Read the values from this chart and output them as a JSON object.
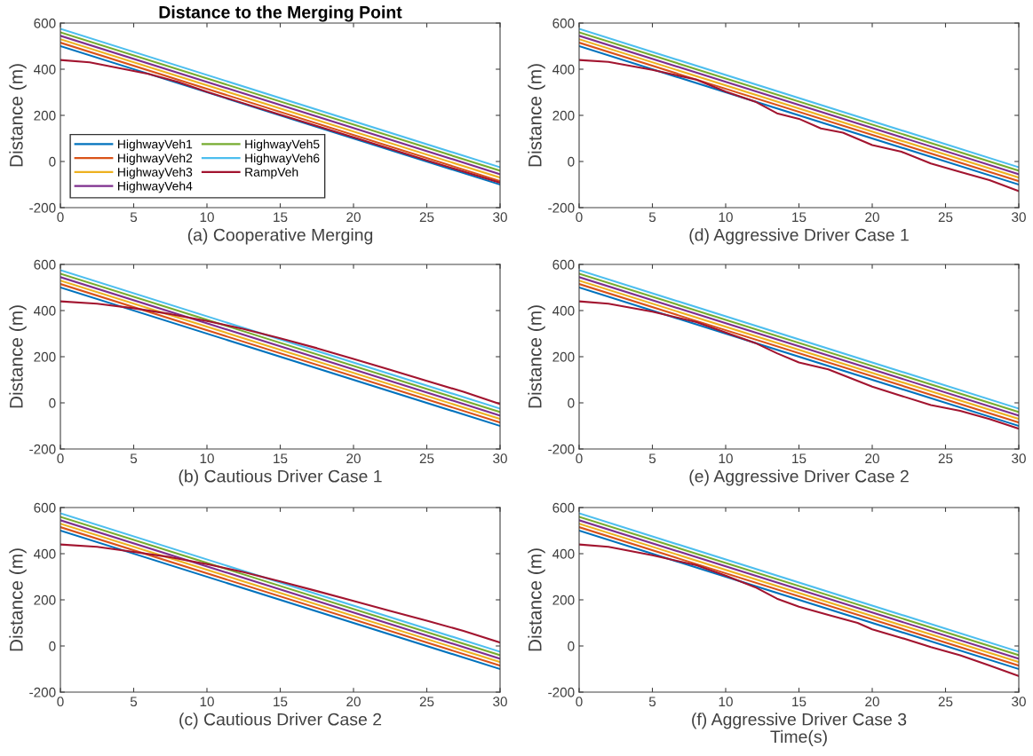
{
  "chart_data": [
    {
      "type": "line",
      "title": "Distance to the Merging Point",
      "xlabel": "(a) Cooperative Merging",
      "ylabel": "Distance (m)",
      "xlim": [
        0,
        30
      ],
      "ylim": [
        -200,
        600
      ],
      "xticks": [
        0,
        5,
        10,
        15,
        20,
        25,
        30
      ],
      "yticks": [
        -200,
        0,
        200,
        400,
        600
      ],
      "legend": "bottom left",
      "grid": false,
      "series": [
        {
          "name": "HighwayVeh1",
          "color": "#0072bd",
          "x": [
            0,
            30
          ],
          "values": [
            500,
            -100
          ]
        },
        {
          "name": "HighwayVeh2",
          "color": "#d95319",
          "x": [
            0,
            30
          ],
          "values": [
            515,
            -85
          ]
        },
        {
          "name": "HighwayVeh3",
          "color": "#edb120",
          "x": [
            0,
            30
          ],
          "values": [
            530,
            -70
          ]
        },
        {
          "name": "HighwayVeh4",
          "color": "#7e2f8e",
          "x": [
            0,
            30
          ],
          "values": [
            545,
            -55
          ]
        },
        {
          "name": "HighwayVeh5",
          "color": "#77ac30",
          "x": [
            0,
            30
          ],
          "values": [
            560,
            -40
          ]
        },
        {
          "name": "HighwayVeh6",
          "color": "#4dbeee",
          "x": [
            0,
            30
          ],
          "values": [
            575,
            -25
          ]
        },
        {
          "name": "RampVeh",
          "color": "#a2142f",
          "x": [
            0,
            2,
            4,
            6,
            8,
            10,
            12,
            15,
            20,
            25,
            30
          ],
          "values": [
            440,
            430,
            405,
            380,
            345,
            302,
            262,
            203,
            105,
            5,
            -92
          ]
        }
      ]
    },
    {
      "type": "line",
      "xlabel": "(d) Aggressive Driver Case 1",
      "ylabel": "Distance (m)",
      "xlim": [
        0,
        30
      ],
      "ylim": [
        -200,
        600
      ],
      "xticks": [
        0,
        5,
        10,
        15,
        20,
        25,
        30
      ],
      "yticks": [
        -200,
        0,
        200,
        400,
        600
      ],
      "grid": false,
      "series": [
        {
          "color": "#0072bd",
          "x": [
            0,
            30
          ],
          "values": [
            500,
            -100
          ]
        },
        {
          "color": "#d95319",
          "x": [
            0,
            30
          ],
          "values": [
            515,
            -85
          ]
        },
        {
          "color": "#edb120",
          "x": [
            0,
            30
          ],
          "values": [
            530,
            -70
          ]
        },
        {
          "color": "#7e2f8e",
          "x": [
            0,
            30
          ],
          "values": [
            545,
            -55
          ]
        },
        {
          "color": "#77ac30",
          "x": [
            0,
            30
          ],
          "values": [
            560,
            -40
          ]
        },
        {
          "color": "#4dbeee",
          "x": [
            0,
            30
          ],
          "values": [
            575,
            -25
          ]
        },
        {
          "color": "#a2142f",
          "x": [
            0,
            2,
            5,
            8,
            10,
            12,
            13.5,
            15,
            16.5,
            18,
            20,
            22,
            24,
            26,
            28,
            30
          ],
          "values": [
            440,
            432,
            397,
            355,
            303,
            260,
            209,
            185,
            143,
            125,
            71,
            42,
            -9,
            -45,
            -81,
            -128
          ]
        }
      ]
    },
    {
      "type": "line",
      "xlabel": "(b) Cautious Driver Case 1",
      "ylabel": "Distance (m)",
      "xlim": [
        0,
        30
      ],
      "ylim": [
        -200,
        600
      ],
      "xticks": [
        0,
        5,
        10,
        15,
        20,
        25,
        30
      ],
      "yticks": [
        -200,
        0,
        200,
        400,
        600
      ],
      "grid": false,
      "series": [
        {
          "color": "#0072bd",
          "x": [
            0,
            30
          ],
          "values": [
            500,
            -100
          ]
        },
        {
          "color": "#d95319",
          "x": [
            0,
            30
          ],
          "values": [
            515,
            -85
          ]
        },
        {
          "color": "#edb120",
          "x": [
            0,
            30
          ],
          "values": [
            530,
            -70
          ]
        },
        {
          "color": "#7e2f8e",
          "x": [
            0,
            30
          ],
          "values": [
            545,
            -55
          ]
        },
        {
          "color": "#77ac30",
          "x": [
            0,
            30
          ],
          "values": [
            560,
            -40
          ]
        },
        {
          "color": "#4dbeee",
          "x": [
            0,
            30
          ],
          "values": [
            575,
            -25
          ]
        },
        {
          "color": "#a2142f",
          "x": [
            0,
            2.5,
            5,
            7.5,
            10,
            12.5,
            15,
            17.5,
            20,
            22.5,
            25,
            27.5,
            30
          ],
          "values": [
            440,
            430,
            410,
            385,
            355,
            320,
            280,
            237,
            190,
            143,
            95,
            48,
            -5
          ]
        }
      ]
    },
    {
      "type": "line",
      "xlabel": "(e) Aggressive Driver Case 2",
      "ylabel": "Distance (m)",
      "xlim": [
        0,
        30
      ],
      "ylim": [
        -200,
        600
      ],
      "xticks": [
        0,
        5,
        10,
        15,
        20,
        25,
        30
      ],
      "yticks": [
        -200,
        0,
        200,
        400,
        600
      ],
      "grid": false,
      "series": [
        {
          "color": "#0072bd",
          "x": [
            0,
            30
          ],
          "values": [
            500,
            -100
          ]
        },
        {
          "color": "#d95319",
          "x": [
            0,
            30
          ],
          "values": [
            515,
            -85
          ]
        },
        {
          "color": "#edb120",
          "x": [
            0,
            30
          ],
          "values": [
            530,
            -70
          ]
        },
        {
          "color": "#7e2f8e",
          "x": [
            0,
            30
          ],
          "values": [
            545,
            -55
          ]
        },
        {
          "color": "#77ac30",
          "x": [
            0,
            30
          ],
          "values": [
            560,
            -40
          ]
        },
        {
          "color": "#4dbeee",
          "x": [
            0,
            30
          ],
          "values": [
            575,
            -25
          ]
        },
        {
          "color": "#a2142f",
          "x": [
            0,
            2,
            5,
            8,
            10,
            12,
            13.5,
            15,
            17,
            20,
            22,
            24,
            26,
            28,
            30
          ],
          "values": [
            440,
            430,
            395,
            350,
            305,
            260,
            215,
            175,
            145,
            70,
            30,
            -10,
            -35,
            -70,
            -112
          ]
        }
      ]
    },
    {
      "type": "line",
      "xlabel": "(c) Cautious Driver Case 2",
      "ylabel": "Distance (m)",
      "xlim": [
        0,
        30
      ],
      "ylim": [
        -200,
        600
      ],
      "xticks": [
        0,
        5,
        10,
        15,
        20,
        25,
        30
      ],
      "yticks": [
        -200,
        0,
        200,
        400,
        600
      ],
      "grid": false,
      "series": [
        {
          "color": "#0072bd",
          "x": [
            0,
            30
          ],
          "values": [
            500,
            -100
          ]
        },
        {
          "color": "#d95319",
          "x": [
            0,
            30
          ],
          "values": [
            515,
            -85
          ]
        },
        {
          "color": "#edb120",
          "x": [
            0,
            30
          ],
          "values": [
            530,
            -70
          ]
        },
        {
          "color": "#7e2f8e",
          "x": [
            0,
            30
          ],
          "values": [
            545,
            -55
          ]
        },
        {
          "color": "#77ac30",
          "x": [
            0,
            30
          ],
          "values": [
            560,
            -40
          ]
        },
        {
          "color": "#4dbeee",
          "x": [
            0,
            30
          ],
          "values": [
            575,
            -25
          ]
        },
        {
          "color": "#a2142f",
          "x": [
            0,
            2.5,
            5,
            7.5,
            10,
            12.5,
            15,
            17.5,
            20,
            22.5,
            25,
            27.5,
            30
          ],
          "values": [
            440,
            430,
            408,
            385,
            355,
            320,
            280,
            238,
            195,
            152,
            110,
            65,
            15
          ]
        }
      ]
    },
    {
      "type": "line",
      "xlabel": "(f) Aggressive Driver Case 3\nTime(s)",
      "ylabel": "Distance (m)",
      "xlim": [
        0,
        30
      ],
      "ylim": [
        -200,
        600
      ],
      "xticks": [
        0,
        5,
        10,
        15,
        20,
        25,
        30
      ],
      "yticks": [
        -200,
        0,
        200,
        400,
        600
      ],
      "grid": false,
      "series": [
        {
          "color": "#0072bd",
          "x": [
            0,
            30
          ],
          "values": [
            500,
            -100
          ]
        },
        {
          "color": "#d95319",
          "x": [
            0,
            30
          ],
          "values": [
            515,
            -85
          ]
        },
        {
          "color": "#edb120",
          "x": [
            0,
            30
          ],
          "values": [
            530,
            -70
          ]
        },
        {
          "color": "#7e2f8e",
          "x": [
            0,
            30
          ],
          "values": [
            545,
            -55
          ]
        },
        {
          "color": "#77ac30",
          "x": [
            0,
            30
          ],
          "values": [
            560,
            -40
          ]
        },
        {
          "color": "#4dbeee",
          "x": [
            0,
            30
          ],
          "values": [
            575,
            -25
          ]
        },
        {
          "color": "#a2142f",
          "x": [
            0,
            2,
            5,
            8,
            10,
            12,
            13.5,
            15,
            17,
            19,
            20,
            22,
            24,
            26,
            28,
            30
          ],
          "values": [
            440,
            430,
            393,
            350,
            305,
            255,
            205,
            170,
            135,
            100,
            72,
            35,
            -5,
            -40,
            -85,
            -130
          ]
        }
      ]
    }
  ]
}
